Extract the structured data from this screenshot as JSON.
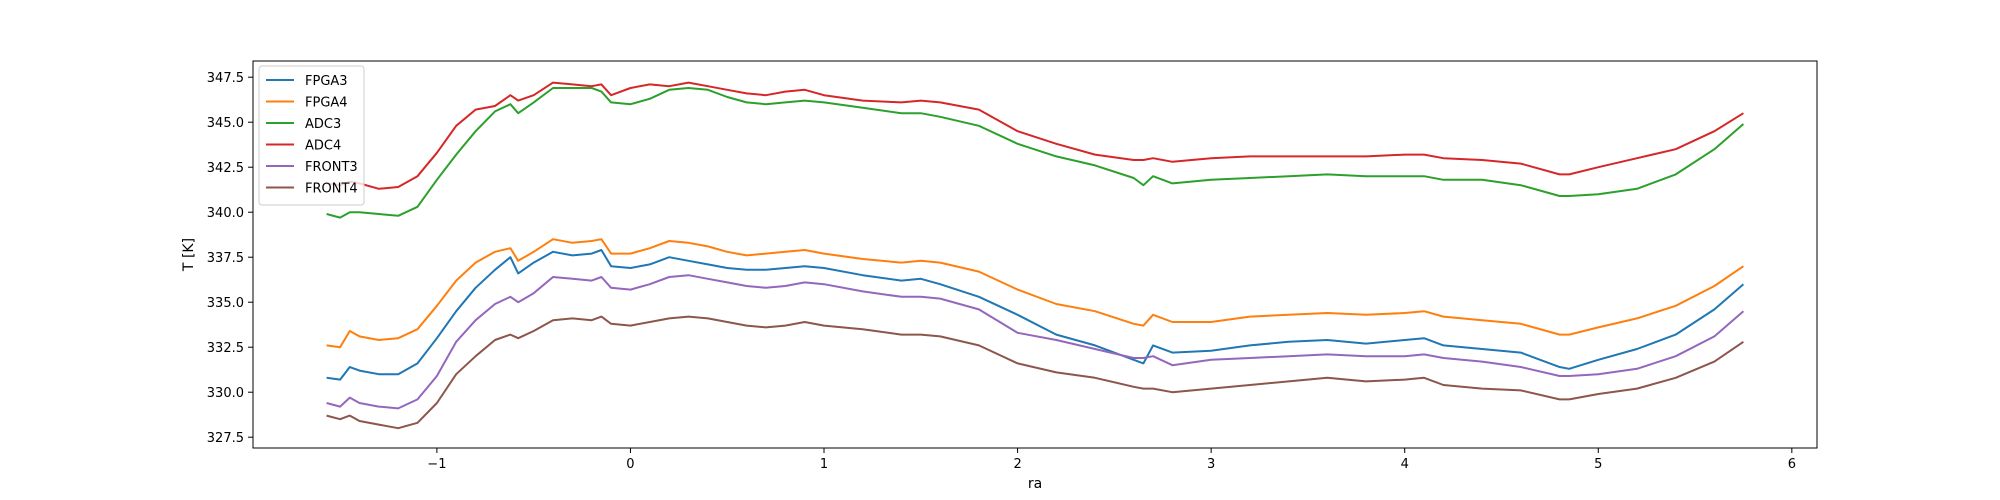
{
  "chart_data": {
    "type": "line",
    "title": "",
    "xlabel": "ra",
    "ylabel": "T [K]",
    "xlim": [
      -1.95,
      6.13
    ],
    "ylim": [
      326.9,
      348.4
    ],
    "xticks": [
      -1,
      0,
      1,
      2,
      3,
      4,
      5,
      6
    ],
    "yticks": [
      327.5,
      330.0,
      332.5,
      335.0,
      337.5,
      340.0,
      342.5,
      345.0,
      347.5
    ],
    "grid": false,
    "legend_position": "top-left",
    "x": [
      -1.57,
      -1.5,
      -1.45,
      -1.4,
      -1.3,
      -1.2,
      -1.1,
      -1.0,
      -0.9,
      -0.8,
      -0.7,
      -0.62,
      -0.58,
      -0.5,
      -0.4,
      -0.3,
      -0.2,
      -0.15,
      -0.1,
      0.0,
      0.1,
      0.2,
      0.3,
      0.4,
      0.5,
      0.6,
      0.7,
      0.8,
      0.9,
      1.0,
      1.2,
      1.4,
      1.5,
      1.6,
      1.8,
      2.0,
      2.2,
      2.4,
      2.6,
      2.65,
      2.7,
      2.8,
      3.0,
      3.2,
      3.4,
      3.6,
      3.8,
      4.0,
      4.1,
      4.2,
      4.4,
      4.6,
      4.8,
      4.85,
      5.0,
      5.2,
      5.4,
      5.6,
      5.75
    ],
    "series": [
      {
        "name": "FPGA3",
        "color": "#1f77b4",
        "values": [
          330.8,
          330.7,
          331.4,
          331.2,
          331.0,
          331.0,
          331.6,
          333.0,
          334.5,
          335.8,
          336.8,
          337.5,
          336.6,
          337.2,
          337.8,
          337.6,
          337.7,
          337.9,
          337.0,
          336.9,
          337.1,
          337.5,
          337.3,
          337.1,
          336.9,
          336.8,
          336.8,
          336.9,
          337.0,
          336.9,
          336.5,
          336.2,
          336.3,
          336.0,
          335.3,
          334.3,
          333.2,
          332.6,
          331.8,
          331.6,
          332.6,
          332.2,
          332.3,
          332.6,
          332.8,
          332.9,
          332.7,
          332.9,
          333.0,
          332.6,
          332.4,
          332.2,
          331.4,
          331.3,
          331.8,
          332.4,
          333.2,
          334.6,
          336.0
        ]
      },
      {
        "name": "FPGA4",
        "color": "#ff7f0e",
        "values": [
          332.6,
          332.5,
          333.4,
          333.1,
          332.9,
          333.0,
          333.5,
          334.8,
          336.2,
          337.2,
          337.8,
          338.0,
          337.3,
          337.8,
          338.5,
          338.3,
          338.4,
          338.5,
          337.7,
          337.7,
          338.0,
          338.4,
          338.3,
          338.1,
          337.8,
          337.6,
          337.7,
          337.8,
          337.9,
          337.7,
          337.4,
          337.2,
          337.3,
          337.2,
          336.7,
          335.7,
          334.9,
          334.5,
          333.8,
          333.7,
          334.3,
          333.9,
          333.9,
          334.2,
          334.3,
          334.4,
          334.3,
          334.4,
          334.5,
          334.2,
          334.0,
          333.8,
          333.2,
          333.2,
          333.6,
          334.1,
          334.8,
          335.9,
          337.0
        ]
      },
      {
        "name": "ADC3",
        "color": "#2ca02c",
        "values": [
          339.9,
          339.7,
          340.0,
          340.0,
          339.9,
          339.8,
          340.3,
          341.8,
          343.2,
          344.5,
          345.6,
          346.0,
          345.5,
          346.1,
          346.9,
          346.9,
          346.9,
          346.7,
          346.1,
          346.0,
          346.3,
          346.8,
          346.9,
          346.8,
          346.4,
          346.1,
          346.0,
          346.1,
          346.2,
          346.1,
          345.8,
          345.5,
          345.5,
          345.3,
          344.8,
          343.8,
          343.1,
          342.6,
          341.9,
          341.5,
          342.0,
          341.6,
          341.8,
          341.9,
          342.0,
          342.1,
          342.0,
          342.0,
          342.0,
          341.8,
          341.8,
          341.5,
          340.9,
          340.9,
          341.0,
          341.3,
          342.1,
          343.5,
          344.9
        ]
      },
      {
        "name": "ADC4",
        "color": "#d62728",
        "values": [
          341.6,
          341.5,
          341.7,
          341.6,
          341.3,
          341.4,
          342.0,
          343.3,
          344.8,
          345.7,
          345.9,
          346.5,
          346.2,
          346.5,
          347.2,
          347.1,
          347.0,
          347.1,
          346.5,
          346.9,
          347.1,
          347.0,
          347.2,
          347.0,
          346.8,
          346.6,
          346.5,
          346.7,
          346.8,
          346.5,
          346.2,
          346.1,
          346.2,
          346.1,
          345.7,
          344.5,
          343.8,
          343.2,
          342.9,
          342.9,
          343.0,
          342.8,
          343.0,
          343.1,
          343.1,
          343.1,
          343.1,
          343.2,
          343.2,
          343.0,
          342.9,
          342.7,
          342.1,
          342.1,
          342.5,
          343.0,
          343.5,
          344.5,
          345.5
        ]
      },
      {
        "name": "FRONT3",
        "color": "#9467bd",
        "values": [
          329.4,
          329.2,
          329.7,
          329.4,
          329.2,
          329.1,
          329.6,
          330.9,
          332.8,
          334.0,
          334.9,
          335.3,
          335.0,
          335.5,
          336.4,
          336.3,
          336.2,
          336.4,
          335.8,
          335.7,
          336.0,
          336.4,
          336.5,
          336.3,
          336.1,
          335.9,
          335.8,
          335.9,
          336.1,
          336.0,
          335.6,
          335.3,
          335.3,
          335.2,
          334.6,
          333.3,
          332.9,
          332.4,
          331.9,
          331.9,
          332.0,
          331.5,
          331.8,
          331.9,
          332.0,
          332.1,
          332.0,
          332.0,
          332.1,
          331.9,
          331.7,
          331.4,
          330.9,
          330.9,
          331.0,
          331.3,
          332.0,
          333.1,
          334.5
        ]
      },
      {
        "name": "FRONT4",
        "color": "#8c564b",
        "values": [
          328.7,
          328.5,
          328.7,
          328.4,
          328.2,
          328.0,
          328.3,
          329.4,
          331.0,
          332.0,
          332.9,
          333.2,
          333.0,
          333.4,
          334.0,
          334.1,
          334.0,
          334.2,
          333.8,
          333.7,
          333.9,
          334.1,
          334.2,
          334.1,
          333.9,
          333.7,
          333.6,
          333.7,
          333.9,
          333.7,
          333.5,
          333.2,
          333.2,
          333.1,
          332.6,
          331.6,
          331.1,
          330.8,
          330.3,
          330.2,
          330.2,
          330.0,
          330.2,
          330.4,
          330.6,
          330.8,
          330.6,
          330.7,
          330.8,
          330.4,
          330.2,
          330.1,
          329.6,
          329.6,
          329.9,
          330.2,
          330.8,
          331.7,
          332.8
        ]
      }
    ]
  }
}
